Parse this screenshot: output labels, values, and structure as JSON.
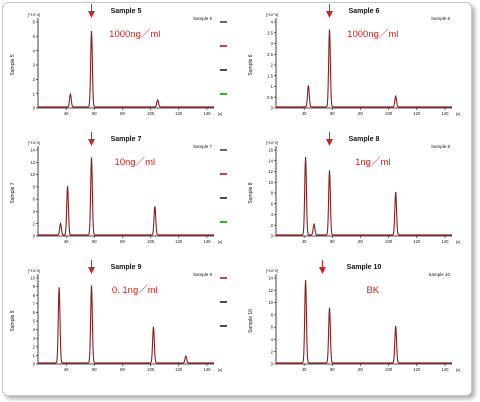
{
  "chart_data": [
    {
      "type": "line",
      "title": "Sample 5",
      "legend": "Sample 5",
      "ylabel": "Sample 5",
      "yunit": "[*10^3]",
      "xunit": "[s]",
      "annotation": "1000ng／ml",
      "xlim": [
        20,
        145
      ],
      "ylim": [
        0,
        6
      ],
      "yticks": [
        "0",
        "1",
        "2",
        "3",
        "4",
        "5",
        "6"
      ],
      "xticks": [
        "40",
        "60",
        "80",
        "100",
        "120",
        "140"
      ],
      "arrow_x": 58,
      "peaks": [
        {
          "x": 43,
          "y": 0.9
        },
        {
          "x": 58,
          "y": 5.3
        },
        {
          "x": 105,
          "y": 0.5
        }
      ],
      "markers": [
        "#444444",
        "#b21e1e",
        "#222222",
        "#1a8a1a"
      ]
    },
    {
      "type": "line",
      "title": "Sample 6",
      "legend": "Sample 6",
      "ylabel": "Sample 6",
      "yunit": "[*10^3]",
      "xunit": "[s]",
      "annotation": "1000ng／ml",
      "xlim": [
        20,
        145
      ],
      "ylim": [
        0,
        4
      ],
      "yticks": [
        "0",
        "0.5",
        "1",
        "1.5",
        "2",
        "2.5",
        "3",
        "3.5",
        "4"
      ],
      "xticks": [
        "40",
        "60",
        "80",
        "100",
        "120",
        "140"
      ],
      "arrow_x": 58,
      "peaks": [
        {
          "x": 43,
          "y": 1.0
        },
        {
          "x": 58,
          "y": 3.6
        },
        {
          "x": 105,
          "y": 0.5
        }
      ],
      "markers": []
    },
    {
      "type": "line",
      "title": "Sample 7",
      "legend": "Sample 7",
      "ylabel": "Sample 7",
      "yunit": "[*10^2]",
      "xunit": "[s]",
      "annotation": "10ng／ml",
      "xlim": [
        20,
        145
      ],
      "ylim": [
        0,
        15
      ],
      "yticks": [
        "0",
        "2",
        "4",
        "6",
        "8",
        "10",
        "12",
        "14"
      ],
      "xticks": [
        "40",
        "60",
        "80",
        "100",
        "120",
        "140"
      ],
      "arrow_x": 58,
      "peaks": [
        {
          "x": 36,
          "y": 2
        },
        {
          "x": 41,
          "y": 8.5
        },
        {
          "x": 58,
          "y": 13.5
        },
        {
          "x": 103,
          "y": 5
        }
      ],
      "markers": [
        "#444444",
        "#b21e1e",
        "#222222",
        "#1a8a1a"
      ]
    },
    {
      "type": "line",
      "title": "Sample 8",
      "legend": "Sample 8",
      "ylabel": "Sample 8",
      "yunit": "[*10^2]",
      "xunit": "[s]",
      "annotation": "1ng／ml",
      "xlim": [
        20,
        145
      ],
      "ylim": [
        0,
        16
      ],
      "yticks": [
        "0",
        "2",
        "4",
        "6",
        "8",
        "10",
        "12",
        "14",
        "16"
      ],
      "xticks": [
        "40",
        "60",
        "80",
        "100",
        "120",
        "140"
      ],
      "arrow_x": 58,
      "peaks": [
        {
          "x": 41,
          "y": 14.5
        },
        {
          "x": 47,
          "y": 2
        },
        {
          "x": 58,
          "y": 12
        },
        {
          "x": 105,
          "y": 8
        }
      ],
      "markers": []
    },
    {
      "type": "line",
      "title": "Sample 9",
      "legend": "Sample 9",
      "ylabel": "Sample 9",
      "yunit": "[*10^2]",
      "xunit": "[s]",
      "annotation": "0. 1ng／ml",
      "xlim": [
        20,
        145
      ],
      "ylim": [
        0,
        10
      ],
      "yticks": [
        "0",
        "1",
        "2",
        "3",
        "4",
        "5",
        "6",
        "7",
        "8",
        "9",
        "10"
      ],
      "xticks": [
        "40",
        "60",
        "80",
        "100",
        "120",
        "140"
      ],
      "arrow_x": 58,
      "peaks": [
        {
          "x": 35,
          "y": 8.8
        },
        {
          "x": 58,
          "y": 9
        },
        {
          "x": 102,
          "y": 4.2
        },
        {
          "x": 125,
          "y": 0.8
        }
      ],
      "markers": [
        "#b21e1e",
        "#222222",
        "#222222"
      ]
    },
    {
      "type": "line",
      "title": "Sample 10",
      "legend": "Sample 10",
      "ylabel": "Sample 10",
      "yunit": "[*10^2]",
      "xunit": "[s]",
      "annotation": "BK",
      "xlim": [
        20,
        145
      ],
      "ylim": [
        0,
        14
      ],
      "yticks": [
        "0",
        "2",
        "4",
        "6",
        "8",
        "10",
        "12",
        "14"
      ],
      "xticks": [
        "40",
        "60",
        "80",
        "100",
        "120",
        "140"
      ],
      "arrow_x": 53,
      "peaks": [
        {
          "x": 41,
          "y": 13.5
        },
        {
          "x": 58,
          "y": 9
        },
        {
          "x": 105,
          "y": 6
        }
      ],
      "markers": []
    }
  ]
}
